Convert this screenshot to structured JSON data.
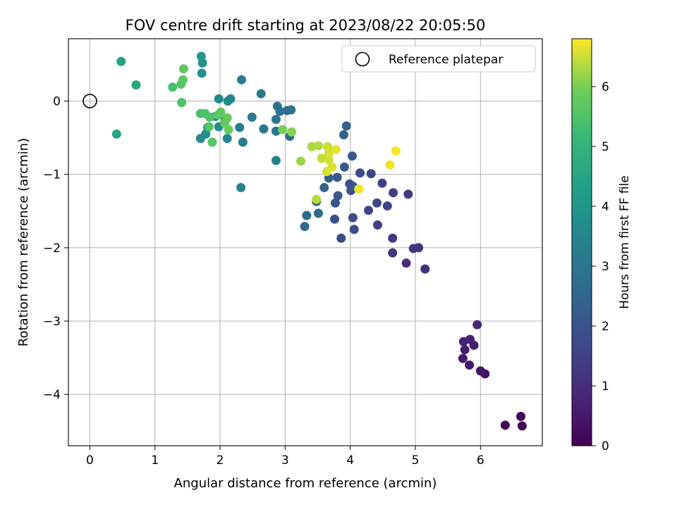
{
  "chart_data": {
    "type": "scatter",
    "title": "FOV centre drift starting at 2023/08/22 20:05:50",
    "xlabel": "Angular distance from reference (arcmin)",
    "ylabel": "Rotation from reference (arcmin)",
    "xlim": [
      -0.33,
      6.95
    ],
    "ylim": [
      -4.7,
      0.85
    ],
    "xticks": [
      "0",
      "1",
      "2",
      "3",
      "4",
      "5",
      "6"
    ],
    "yticks": [
      "0",
      "−1",
      "−2",
      "−3",
      "−4"
    ],
    "grid": true,
    "legend": {
      "placement": "top-right",
      "entries": [
        "Reference platepar"
      ]
    },
    "reference_point": {
      "x": 0,
      "y": 0
    },
    "colorbar": {
      "label": "Hours from first FF file",
      "range": [
        0,
        6.8
      ],
      "ticks": [
        "0",
        "1",
        "2",
        "3",
        "4",
        "5",
        "6"
      ],
      "colormap": "viridis"
    },
    "series": [
      {
        "points": [
          {
            "x": 6.38,
            "y": -4.42,
            "c": 0.1
          },
          {
            "x": 6.62,
            "y": -4.3,
            "c": 0.12
          },
          {
            "x": 6.64,
            "y": -4.43,
            "c": 0.15
          },
          {
            "x": 6.07,
            "y": -3.72,
            "c": 0.4
          },
          {
            "x": 6.0,
            "y": -3.68,
            "c": 0.45
          },
          {
            "x": 5.83,
            "y": -3.6,
            "c": 0.5
          },
          {
            "x": 5.73,
            "y": -3.51,
            "c": 0.55
          },
          {
            "x": 5.76,
            "y": -3.39,
            "c": 0.6
          },
          {
            "x": 5.9,
            "y": -3.33,
            "c": 0.65
          },
          {
            "x": 5.74,
            "y": -3.28,
            "c": 0.7
          },
          {
            "x": 5.84,
            "y": -3.25,
            "c": 0.72
          },
          {
            "x": 5.95,
            "y": -3.05,
            "c": 0.8
          },
          {
            "x": 5.15,
            "y": -2.29,
            "c": 1.0
          },
          {
            "x": 4.86,
            "y": -2.21,
            "c": 1.05
          },
          {
            "x": 5.05,
            "y": -2.0,
            "c": 1.1
          },
          {
            "x": 4.97,
            "y": -2.01,
            "c": 1.15
          },
          {
            "x": 4.65,
            "y": -2.07,
            "c": 1.2
          },
          {
            "x": 4.65,
            "y": -1.87,
            "c": 1.3
          },
          {
            "x": 4.42,
            "y": -1.69,
            "c": 1.5
          },
          {
            "x": 4.06,
            "y": -1.75,
            "c": 1.7
          },
          {
            "x": 3.86,
            "y": -1.87,
            "c": 1.75
          },
          {
            "x": 4.28,
            "y": -1.49,
            "c": 1.6
          },
          {
            "x": 4.41,
            "y": -1.39,
            "c": 1.65
          },
          {
            "x": 4.57,
            "y": -1.43,
            "c": 1.55
          },
          {
            "x": 4.66,
            "y": -1.25,
            "c": 1.4
          },
          {
            "x": 4.89,
            "y": -1.27,
            "c": 1.35
          },
          {
            "x": 4.49,
            "y": -1.12,
            "c": 1.5
          },
          {
            "x": 4.32,
            "y": -0.99,
            "c": 1.6
          },
          {
            "x": 4.15,
            "y": -0.98,
            "c": 1.7
          },
          {
            "x": 4.04,
            "y": -1.59,
            "c": 1.8
          },
          {
            "x": 3.76,
            "y": -1.61,
            "c": 1.9
          },
          {
            "x": 3.77,
            "y": -1.39,
            "c": 2.0
          },
          {
            "x": 3.81,
            "y": -1.29,
            "c": 2.05
          },
          {
            "x": 3.8,
            "y": -1.04,
            "c": 2.1
          },
          {
            "x": 3.99,
            "y": -1.13,
            "c": 1.9
          },
          {
            "x": 4.01,
            "y": -1.22,
            "c": 1.95
          },
          {
            "x": 4.04,
            "y": -1.16,
            "c": 2.0
          },
          {
            "x": 3.91,
            "y": -0.9,
            "c": 2.2
          },
          {
            "x": 4.03,
            "y": -0.75,
            "c": 2.15
          },
          {
            "x": 3.9,
            "y": -0.46,
            "c": 2.3
          },
          {
            "x": 3.94,
            "y": -0.34,
            "c": 2.35
          },
          {
            "x": 3.67,
            "y": -1.05,
            "c": 2.4
          },
          {
            "x": 3.6,
            "y": -1.18,
            "c": 2.45
          },
          {
            "x": 3.48,
            "y": -1.37,
            "c": 2.5
          },
          {
            "x": 3.51,
            "y": -1.53,
            "c": 2.55
          },
          {
            "x": 3.33,
            "y": -1.56,
            "c": 2.6
          },
          {
            "x": 3.3,
            "y": -1.71,
            "c": 2.65
          },
          {
            "x": 3.07,
            "y": -0.48,
            "c": 2.7
          },
          {
            "x": 3.03,
            "y": -0.13,
            "c": 2.75
          },
          {
            "x": 3.09,
            "y": -0.12,
            "c": 2.8
          },
          {
            "x": 2.92,
            "y": -0.14,
            "c": 2.85
          },
          {
            "x": 2.88,
            "y": -0.07,
            "c": 2.9
          },
          {
            "x": 2.86,
            "y": -0.25,
            "c": 2.95
          },
          {
            "x": 2.86,
            "y": -0.41,
            "c": 3.0
          },
          {
            "x": 2.67,
            "y": -0.38,
            "c": 3.05
          },
          {
            "x": 2.63,
            "y": 0.1,
            "c": 3.1
          },
          {
            "x": 2.49,
            "y": -0.22,
            "c": 3.15
          },
          {
            "x": 2.33,
            "y": 0.29,
            "c": 3.2
          },
          {
            "x": 2.3,
            "y": -0.36,
            "c": 3.25
          },
          {
            "x": 2.35,
            "y": -0.56,
            "c": 3.3
          },
          {
            "x": 2.32,
            "y": -1.18,
            "c": 3.35
          },
          {
            "x": 2.86,
            "y": -0.81,
            "c": 3.4
          },
          {
            "x": 2.16,
            "y": 0.03,
            "c": 3.5
          },
          {
            "x": 2.12,
            "y": 0.0,
            "c": 3.55
          },
          {
            "x": 1.98,
            "y": 0.03,
            "c": 3.6
          },
          {
            "x": 2.11,
            "y": -0.51,
            "c": 3.6
          },
          {
            "x": 1.7,
            "y": -0.51,
            "c": 3.65
          },
          {
            "x": 1.78,
            "y": -0.45,
            "c": 3.7
          },
          {
            "x": 1.93,
            "y": -0.21,
            "c": 3.7
          },
          {
            "x": 1.81,
            "y": -0.36,
            "c": 3.75
          },
          {
            "x": 1.98,
            "y": -0.35,
            "c": 3.8
          },
          {
            "x": 2.08,
            "y": -0.26,
            "c": 3.8
          },
          {
            "x": 1.72,
            "y": 0.38,
            "c": 3.85
          },
          {
            "x": 1.73,
            "y": 0.52,
            "c": 3.9
          },
          {
            "x": 1.71,
            "y": 0.61,
            "c": 4.1
          },
          {
            "x": 0.48,
            "y": 0.54,
            "c": 4.4
          },
          {
            "x": 0.41,
            "y": -0.45,
            "c": 4.5
          },
          {
            "x": 0.71,
            "y": 0.22,
            "c": 4.6
          },
          {
            "x": 1.27,
            "y": 0.19,
            "c": 5.4
          },
          {
            "x": 1.41,
            "y": -0.02,
            "c": 5.5
          },
          {
            "x": 1.4,
            "y": 0.23,
            "c": 5.6
          },
          {
            "x": 1.43,
            "y": 0.29,
            "c": 5.65
          },
          {
            "x": 1.44,
            "y": 0.44,
            "c": 5.7
          },
          {
            "x": 1.7,
            "y": -0.17,
            "c": 5.4
          },
          {
            "x": 1.77,
            "y": -0.17,
            "c": 5.45
          },
          {
            "x": 1.84,
            "y": -0.22,
            "c": 5.5
          },
          {
            "x": 1.83,
            "y": -0.35,
            "c": 5.55
          },
          {
            "x": 1.88,
            "y": -0.56,
            "c": 5.6
          },
          {
            "x": 1.97,
            "y": -0.19,
            "c": 5.65
          },
          {
            "x": 2.01,
            "y": -0.15,
            "c": 5.7
          },
          {
            "x": 2.07,
            "y": -0.3,
            "c": 5.75
          },
          {
            "x": 2.11,
            "y": -0.23,
            "c": 5.8
          },
          {
            "x": 2.13,
            "y": -0.39,
            "c": 5.85
          },
          {
            "x": 2.96,
            "y": -0.39,
            "c": 6.0
          },
          {
            "x": 3.1,
            "y": -0.42,
            "c": 6.1
          },
          {
            "x": 3.24,
            "y": -0.82,
            "c": 6.2
          },
          {
            "x": 3.41,
            "y": -0.62,
            "c": 6.3
          },
          {
            "x": 3.51,
            "y": -0.61,
            "c": 6.35
          },
          {
            "x": 3.48,
            "y": -1.34,
            "c": 6.4
          },
          {
            "x": 3.56,
            "y": -0.78,
            "c": 6.45
          },
          {
            "x": 3.65,
            "y": -0.62,
            "c": 6.5
          },
          {
            "x": 3.67,
            "y": -0.71,
            "c": 6.55
          },
          {
            "x": 3.67,
            "y": -0.8,
            "c": 6.55
          },
          {
            "x": 3.72,
            "y": -0.9,
            "c": 6.6
          },
          {
            "x": 3.64,
            "y": -0.96,
            "c": 6.6
          },
          {
            "x": 3.78,
            "y": -0.66,
            "c": 6.65
          },
          {
            "x": 4.13,
            "y": -1.2,
            "c": 6.7
          },
          {
            "x": 4.61,
            "y": -0.87,
            "c": 6.7
          },
          {
            "x": 4.7,
            "y": -0.68,
            "c": 6.75
          }
        ]
      }
    ]
  }
}
